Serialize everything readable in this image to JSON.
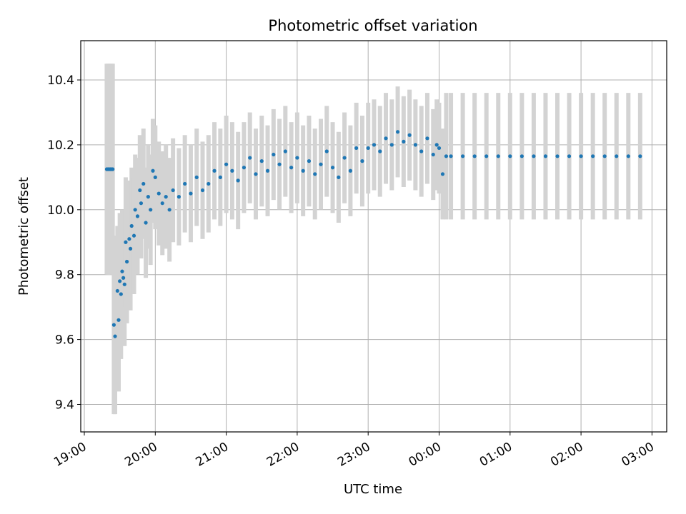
{
  "chart_data": {
    "type": "scatter",
    "title": "Photometric offset variation",
    "xlabel": "UTC time",
    "ylabel": "Photometric offset",
    "x_axis": {
      "kind": "time",
      "ticks": [
        "19:00",
        "20:00",
        "21:00",
        "22:00",
        "23:00",
        "00:00",
        "01:00",
        "02:00",
        "03:00"
      ],
      "range": [
        "19:00",
        "03:12"
      ]
    },
    "y_axis": {
      "ticks": [
        "9.4",
        "9.6",
        "9.8",
        "10.0",
        "10.2",
        "10.4"
      ],
      "range": [
        9.32,
        10.52
      ]
    },
    "grid": true,
    "legend": "none",
    "colors": {
      "points": "#1f77b4",
      "errorbars": "#d3d3d3",
      "grid": "#b0b0b0"
    },
    "series": [
      {
        "x": [
          "19:19",
          "19:20",
          "19:21",
          "19:22",
          "19:23",
          "19:24",
          "19:25",
          "19:26",
          "19:28",
          "19:29",
          "19:30",
          "19:31",
          "19:32",
          "19:33",
          "19:34",
          "19:35",
          "19:36",
          "19:38",
          "19:39",
          "19:40",
          "19:42",
          "19:43",
          "19:45",
          "19:47",
          "19:48",
          "19:50",
          "19:52",
          "19:54",
          "19:56",
          "19:58",
          "20:00",
          "20:03",
          "20:06",
          "20:09",
          "20:12",
          "20:15",
          "20:20",
          "20:25",
          "20:30",
          "20:35",
          "20:40",
          "20:45",
          "20:50",
          "20:55",
          "21:00",
          "21:05",
          "21:10",
          "21:15",
          "21:20",
          "21:25",
          "21:30",
          "21:35",
          "21:40",
          "21:45",
          "21:50",
          "21:55",
          "22:00",
          "22:05",
          "22:10",
          "22:15",
          "22:20",
          "22:25",
          "22:30",
          "22:35",
          "22:40",
          "22:45",
          "22:50",
          "22:55",
          "23:00",
          "23:05",
          "23:10",
          "23:15",
          "23:20",
          "23:25",
          "23:30",
          "23:35",
          "23:40",
          "23:45",
          "23:50",
          "23:55",
          "23:58",
          "00:00",
          "00:03",
          "00:06",
          "00:10",
          "00:20",
          "00:30",
          "00:40",
          "00:50",
          "01:00",
          "01:10",
          "01:20",
          "01:30",
          "01:40",
          "01:50",
          "02:00",
          "02:10",
          "02:20",
          "02:30",
          "02:40",
          "02:50"
        ],
        "y": [
          10.125,
          10.125,
          10.125,
          10.125,
          10.125,
          10.125,
          9.645,
          9.61,
          9.75,
          9.66,
          9.78,
          9.74,
          9.81,
          9.79,
          9.77,
          9.9,
          9.84,
          9.91,
          9.88,
          9.95,
          9.92,
          10.0,
          9.98,
          10.06,
          10.02,
          10.08,
          9.96,
          10.04,
          10.0,
          10.12,
          10.1,
          10.05,
          10.02,
          10.04,
          10.0,
          10.06,
          10.04,
          10.08,
          10.05,
          10.1,
          10.06,
          10.08,
          10.12,
          10.1,
          10.14,
          10.12,
          10.09,
          10.13,
          10.16,
          10.11,
          10.15,
          10.12,
          10.17,
          10.14,
          10.18,
          10.13,
          10.16,
          10.12,
          10.15,
          10.11,
          10.14,
          10.18,
          10.13,
          10.1,
          10.16,
          10.12,
          10.19,
          10.15,
          10.19,
          10.2,
          10.18,
          10.22,
          10.2,
          10.24,
          10.21,
          10.23,
          10.2,
          10.18,
          10.22,
          10.17,
          10.2,
          10.19,
          10.11,
          10.165,
          10.165,
          10.165,
          10.165,
          10.165,
          10.165,
          10.165,
          10.165,
          10.165,
          10.165,
          10.165,
          10.165,
          10.165,
          10.165,
          10.165,
          10.165,
          10.165,
          10.165
        ],
        "yerr": [
          0.325,
          0.325,
          0.325,
          0.325,
          0.325,
          0.325,
          0.275,
          0.24,
          0.2,
          0.22,
          0.21,
          0.2,
          0.19,
          0.2,
          0.19,
          0.2,
          0.19,
          0.18,
          0.19,
          0.18,
          0.18,
          0.17,
          0.18,
          0.17,
          0.17,
          0.17,
          0.17,
          0.16,
          0.17,
          0.16,
          0.16,
          0.16,
          0.16,
          0.16,
          0.16,
          0.16,
          0.15,
          0.15,
          0.15,
          0.15,
          0.15,
          0.15,
          0.15,
          0.15,
          0.15,
          0.15,
          0.15,
          0.14,
          0.14,
          0.14,
          0.14,
          0.14,
          0.14,
          0.14,
          0.14,
          0.14,
          0.14,
          0.14,
          0.14,
          0.14,
          0.14,
          0.14,
          0.14,
          0.14,
          0.14,
          0.14,
          0.14,
          0.14,
          0.14,
          0.14,
          0.14,
          0.14,
          0.14,
          0.14,
          0.14,
          0.14,
          0.14,
          0.14,
          0.14,
          0.14,
          0.14,
          0.14,
          0.14,
          0.195,
          0.195,
          0.195,
          0.195,
          0.195,
          0.195,
          0.195,
          0.195,
          0.195,
          0.195,
          0.195,
          0.195,
          0.195,
          0.195,
          0.195,
          0.195,
          0.195,
          0.195
        ]
      }
    ]
  }
}
